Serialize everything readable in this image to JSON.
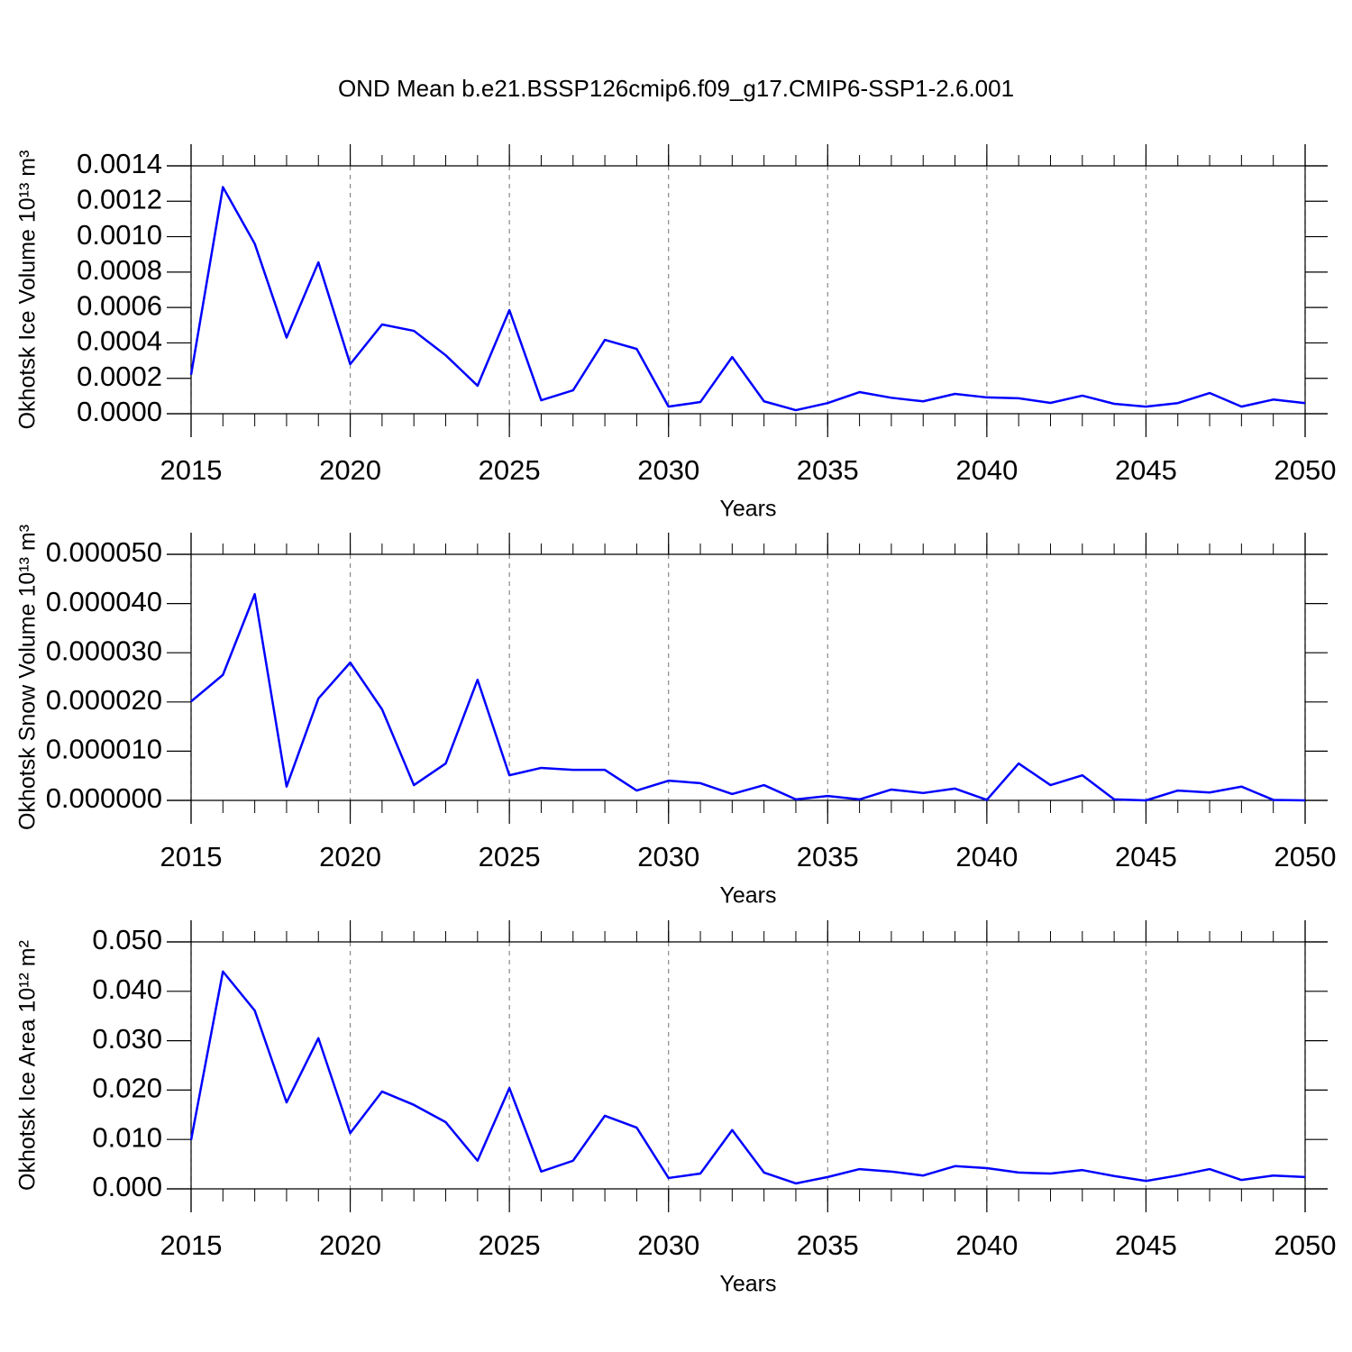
{
  "chart_data": [
    {
      "type": "line",
      "title": "OND Mean b.e21.BSSP126cmip6.f09_g17.CMIP6-SSP1-2.6.001",
      "xlabel": "Years",
      "ylabel": "Okhotsk Ice Volume 10¹³ m³",
      "x": [
        2015,
        2016,
        2017,
        2018,
        2019,
        2020,
        2021,
        2022,
        2023,
        2024,
        2025,
        2026,
        2027,
        2028,
        2029,
        2030,
        2031,
        2032,
        2033,
        2034,
        2035,
        2036,
        2037,
        2038,
        2039,
        2040,
        2041,
        2042,
        2043,
        2044,
        2045,
        2046,
        2047,
        2048,
        2049,
        2050
      ],
      "values": [
        0.00022,
        0.00128,
        0.00096,
        0.00043,
        0.000855,
        0.00028,
        0.000504,
        0.000468,
        0.00033,
        0.000158,
        0.000585,
        7.6e-05,
        0.000132,
        0.000417,
        0.000366,
        4e-05,
        6.6e-05,
        0.00032,
        7e-05,
        2e-05,
        6e-05,
        0.000122,
        9e-05,
        7e-05,
        0.000112,
        9.2e-05,
        8.7e-05,
        6.1e-05,
        0.000102,
        5.6e-05,
        4e-05,
        6e-05,
        0.000117,
        4e-05,
        8e-05,
        6e-05
      ],
      "color": "#0000ff",
      "xlim": [
        2015,
        2050
      ],
      "xticks": [
        2015,
        2020,
        2025,
        2030,
        2035,
        2040,
        2045,
        2050
      ],
      "ylim": [
        0,
        0.0014
      ],
      "yticks": [
        {
          "value": 0,
          "label": "0.0000"
        },
        0.0002,
        0.0004,
        0.0006,
        0.0008,
        {
          "value": 0.001,
          "label": "0.0010"
        },
        0.0012,
        0.0014
      ],
      "grid": "x"
    },
    {
      "type": "line",
      "xlabel": "Years",
      "ylabel": "Okhotsk Snow Volume 10¹³ m³",
      "x": [
        2015,
        2016,
        2017,
        2018,
        2019,
        2020,
        2021,
        2022,
        2023,
        2024,
        2025,
        2026,
        2027,
        2028,
        2029,
        2030,
        2031,
        2032,
        2033,
        2034,
        2035,
        2036,
        2037,
        2038,
        2039,
        2040,
        2041,
        2042,
        2043,
        2044,
        2045,
        2046,
        2047,
        2048,
        2049,
        2050
      ],
      "values": [
        2.01e-05,
        2.55e-05,
        4.19e-05,
        2.8e-06,
        2.07e-05,
        2.8e-05,
        1.85e-05,
        3.1e-06,
        7.5e-06,
        2.45e-05,
        5.1e-06,
        6.6e-06,
        6.2e-06,
        6.2e-06,
        2e-06,
        4e-06,
        3.5e-06,
        1.3e-06,
        3.1e-06,
        2e-07,
        9e-07,
        2e-07,
        2.2e-06,
        1.5e-06,
        2.4e-06,
        1e-07,
        7.5e-06,
        3.1e-06,
        5.1e-06,
        2e-07,
        0,
        2e-06,
        1.6e-06,
        2.8e-06,
        1e-07,
        0
      ],
      "color": "#0000ff",
      "xlim": [
        2015,
        2050
      ],
      "xticks": [
        2015,
        2020,
        2025,
        2030,
        2035,
        2040,
        2045,
        2050
      ],
      "ylim": [
        0,
        5e-05
      ],
      "yticks": [
        {
          "value": 0,
          "label": "0.000000"
        },
        {
          "value": 1e-05,
          "label": "0.000010"
        },
        {
          "value": 2e-05,
          "label": "0.000020"
        },
        {
          "value": 3e-05,
          "label": "0.000030"
        },
        {
          "value": 4e-05,
          "label": "0.000040"
        },
        {
          "value": 5e-05,
          "label": "0.000050"
        }
      ],
      "grid": "x"
    },
    {
      "type": "line",
      "xlabel": "Years",
      "ylabel": "Okhotsk Ice Area 10¹² m²",
      "x": [
        2015,
        2016,
        2017,
        2018,
        2019,
        2020,
        2021,
        2022,
        2023,
        2024,
        2025,
        2026,
        2027,
        2028,
        2029,
        2030,
        2031,
        2032,
        2033,
        2034,
        2035,
        2036,
        2037,
        2038,
        2039,
        2040,
        2041,
        2042,
        2043,
        2044,
        2045,
        2046,
        2047,
        2048,
        2049,
        2050
      ],
      "values": [
        0.0099,
        0.044,
        0.0361,
        0.0175,
        0.0305,
        0.0113,
        0.0197,
        0.017,
        0.0135,
        0.0057,
        0.0204,
        0.0035,
        0.0057,
        0.0148,
        0.0124,
        0.0022,
        0.0031,
        0.0119,
        0.0033,
        0.0011,
        0.0024,
        0.004,
        0.0035,
        0.0027,
        0.0046,
        0.0042,
        0.0033,
        0.0031,
        0.0038,
        0.0026,
        0.0016,
        0.0027,
        0.004,
        0.0018,
        0.0027,
        0.0024
      ],
      "color": "#0000ff",
      "xlim": [
        2015,
        2050
      ],
      "xticks": [
        2015,
        2020,
        2025,
        2030,
        2035,
        2040,
        2045,
        2050
      ],
      "ylim": [
        0,
        0.05
      ],
      "yticks": [
        {
          "value": 0,
          "label": "0.000"
        },
        {
          "value": 0.01,
          "label": "0.010"
        },
        {
          "value": 0.02,
          "label": "0.020"
        },
        {
          "value": 0.03,
          "label": "0.030"
        },
        {
          "value": 0.04,
          "label": "0.040"
        },
        {
          "value": 0.05,
          "label": "0.050"
        }
      ],
      "grid": "x"
    }
  ]
}
